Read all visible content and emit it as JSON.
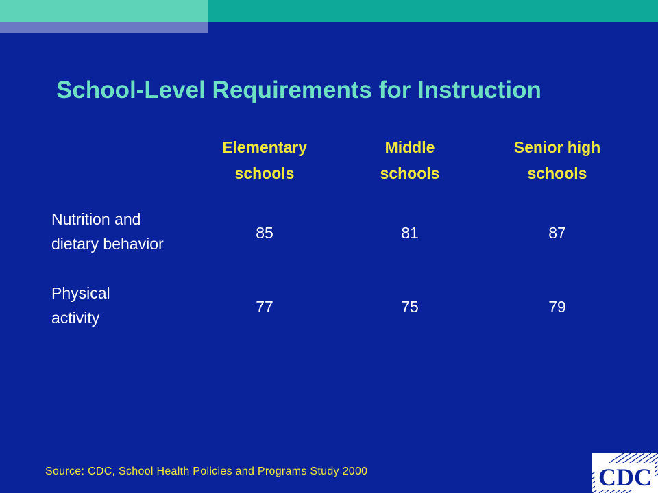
{
  "slide": {
    "title": "School-Level Requirements for Instruction",
    "columns": [
      {
        "line1": "Elementary",
        "line2": "schools"
      },
      {
        "line1": "Middle",
        "line2": "schools"
      },
      {
        "line1": "Senior high",
        "line2": "schools"
      }
    ],
    "rows": [
      {
        "label_line1": "Nutrition and",
        "label_line2": "dietary behavior",
        "values": [
          "85",
          "81",
          "87"
        ]
      },
      {
        "label_line1": "Physical",
        "label_line2": "activity",
        "values": [
          "77",
          "75",
          "79"
        ]
      }
    ],
    "source": "Source:  CDC, School Health Policies and Programs Study 2000",
    "logo_text": "CDC"
  },
  "colors": {
    "background": "#0a239a",
    "title": "#6ee0c4",
    "header": "#f2e83a",
    "body_text": "#ffffff",
    "band": "#0fa99a"
  }
}
